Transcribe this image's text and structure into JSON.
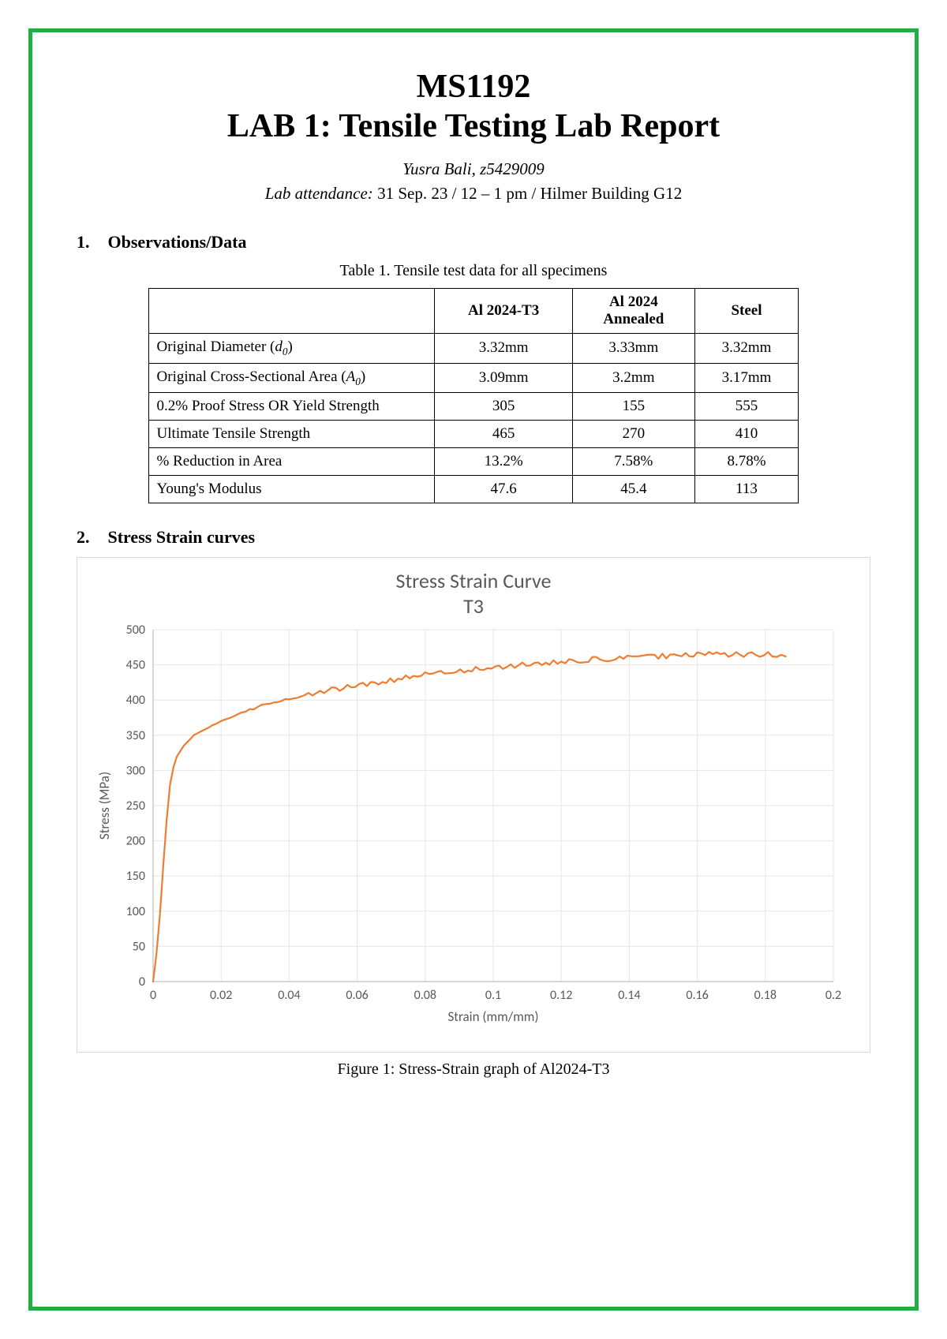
{
  "header": {
    "course_code": "MS1192",
    "lab_title": "LAB 1: Tensile Testing Lab Report",
    "author": "Yusra Bali, z5429009",
    "attendance_label": "Lab attendance:",
    "attendance_value": " 31 Sep. 23 / 12 – 1 pm / Hilmer Building G12"
  },
  "section1": {
    "number": "1.",
    "title": "Observations/Data",
    "table_caption": "Table 1. Tensile test data for all specimens",
    "columns": [
      "",
      "Al 2024-T3",
      "Al 2024 Annealed",
      "Steel"
    ],
    "rows": [
      {
        "label_html": "Original Diameter (<i>d<span class='sub'>0</span></i>)",
        "cells": [
          "3.32mm",
          "3.33mm",
          "3.32mm"
        ]
      },
      {
        "label_html": "Original Cross-Sectional Area (<i>A<span class='sub'>0</span></i>)",
        "cells": [
          "3.09mm",
          "3.2mm",
          "3.17mm"
        ]
      },
      {
        "label_html": "0.2% Proof Stress OR Yield Strength",
        "cells": [
          "305",
          "155",
          "555"
        ]
      },
      {
        "label_html": "Ultimate Tensile Strength",
        "cells": [
          "465",
          "270",
          "410"
        ]
      },
      {
        "label_html": "% Reduction in Area",
        "cells": [
          "13.2%",
          "7.58%",
          "8.78%"
        ]
      },
      {
        "label_html": "Young's Modulus",
        "cells": [
          "47.6",
          "45.4",
          "113"
        ]
      }
    ]
  },
  "section2": {
    "number": "2.",
    "title": "Stress Strain curves"
  },
  "chart": {
    "type": "line",
    "title_line1": "Stress Strain Curve",
    "title_line2": "T3",
    "xlabel": "Strain (mm/mm)",
    "ylabel": "Stress (MPa)",
    "xlim": [
      0,
      0.2
    ],
    "ylim": [
      0,
      500
    ],
    "xtick_step": 0.02,
    "ytick_step": 50,
    "xticks": [
      "0",
      "0.02",
      "0.04",
      "0.06",
      "0.08",
      "0.1",
      "0.12",
      "0.14",
      "0.16",
      "0.18",
      "0.2"
    ],
    "yticks": [
      "0",
      "50",
      "100",
      "150",
      "200",
      "250",
      "300",
      "350",
      "400",
      "450",
      "500"
    ],
    "line_color": "#ed7d31",
    "line_width": 2.2,
    "grid_color": "#e6e6e6",
    "axis_color": "#bfbfbf",
    "background_color": "#ffffff",
    "tick_fontsize": 16,
    "label_fontsize": 17,
    "title_fontsize": 26,
    "title_color": "#595959",
    "series": [
      {
        "x": 0.0,
        "y": 0
      },
      {
        "x": 0.001,
        "y": 40
      },
      {
        "x": 0.002,
        "y": 95
      },
      {
        "x": 0.003,
        "y": 165
      },
      {
        "x": 0.004,
        "y": 230
      },
      {
        "x": 0.005,
        "y": 280
      },
      {
        "x": 0.006,
        "y": 305
      },
      {
        "x": 0.007,
        "y": 320
      },
      {
        "x": 0.009,
        "y": 335
      },
      {
        "x": 0.012,
        "y": 350
      },
      {
        "x": 0.016,
        "y": 360
      },
      {
        "x": 0.02,
        "y": 370
      },
      {
        "x": 0.026,
        "y": 382
      },
      {
        "x": 0.032,
        "y": 392
      },
      {
        "x": 0.04,
        "y": 402
      },
      {
        "x": 0.048,
        "y": 410
      },
      {
        "x": 0.056,
        "y": 418
      },
      {
        "x": 0.064,
        "y": 424
      },
      {
        "x": 0.072,
        "y": 430
      },
      {
        "x": 0.08,
        "y": 436
      },
      {
        "x": 0.088,
        "y": 440
      },
      {
        "x": 0.096,
        "y": 444
      },
      {
        "x": 0.104,
        "y": 448
      },
      {
        "x": 0.112,
        "y": 451
      },
      {
        "x": 0.12,
        "y": 454
      },
      {
        "x": 0.128,
        "y": 457
      },
      {
        "x": 0.136,
        "y": 459
      },
      {
        "x": 0.144,
        "y": 461
      },
      {
        "x": 0.152,
        "y": 463
      },
      {
        "x": 0.16,
        "y": 464
      },
      {
        "x": 0.168,
        "y": 465
      },
      {
        "x": 0.176,
        "y": 465
      },
      {
        "x": 0.182,
        "y": 464
      },
      {
        "x": 0.186,
        "y": 462
      }
    ],
    "noise_amplitude": 4
  },
  "figure_caption": "Figure 1: Stress-Strain graph of Al2024-T3"
}
